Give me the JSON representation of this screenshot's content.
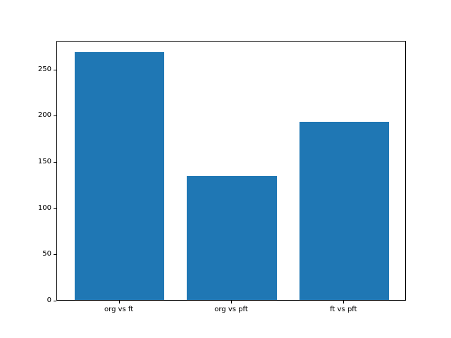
{
  "chart_data": {
    "type": "bar",
    "categories": [
      "org vs ft",
      "org vs pft",
      "ft vs pft"
    ],
    "values": [
      268,
      134,
      193
    ],
    "title": "",
    "xlabel": "",
    "ylabel": "",
    "ylim": [
      0,
      281
    ],
    "yticks": [
      0,
      50,
      100,
      150,
      200,
      250
    ],
    "bar_color": "#1f77b4",
    "axis_color": "#000000",
    "background_color": "#ffffff",
    "grid": false,
    "legend": null,
    "bar_width_fraction": 0.8
  }
}
